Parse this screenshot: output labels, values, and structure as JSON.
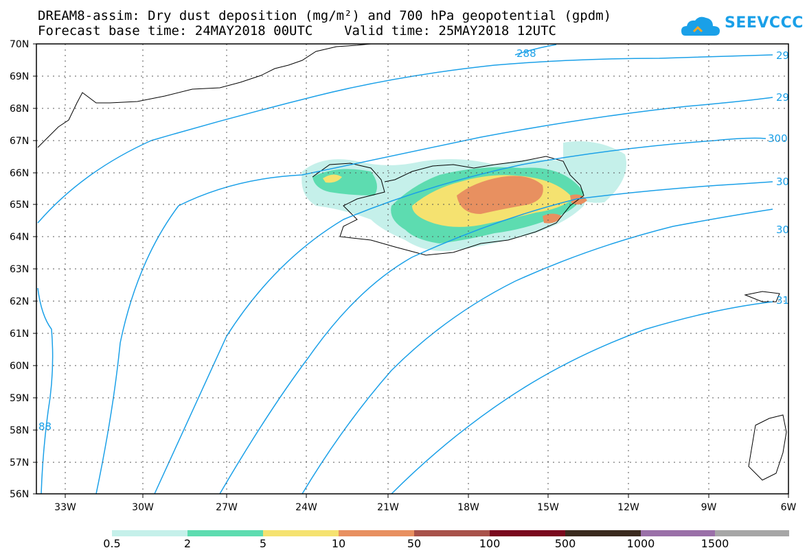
{
  "title_line1": "DREAM8-assim: Dry dust deposition (mg/m²) and 700 hPa geopotential (gpdm)",
  "title_line2": "Forecast base time: 24MAY2018 00UTC    Valid time: 25MAY2018 12UTC",
  "logo_text": "SEEVCCC",
  "colors": {
    "contour": "#1aa0e8",
    "coast": "#000000",
    "grid": "#555555"
  },
  "lat_labels": [
    "70N",
    "69N",
    "68N",
    "67N",
    "66N",
    "65N",
    "64N",
    "63N",
    "62N",
    "61N",
    "60N",
    "59N",
    "58N",
    "57N",
    "56N"
  ],
  "lon_labels": [
    "33W",
    "30W",
    "27W",
    "24W",
    "21W",
    "18W",
    "15W",
    "12W",
    "9W",
    "6W"
  ],
  "contour_labels": [
    "288",
    "29",
    "29",
    "300",
    "30",
    "30",
    "31",
    "88"
  ],
  "legend": {
    "labels": [
      "0.5",
      "2",
      "5",
      "10",
      "50",
      "100",
      "500",
      "1000",
      "1500"
    ],
    "colors": [
      "#c5f0ea",
      "#5ddcb0",
      "#f5e270",
      "#e89060",
      "#a8524a",
      "#7a0a1e",
      "#3a2a1e",
      "#9a70a8",
      "#a6a6a6"
    ]
  }
}
